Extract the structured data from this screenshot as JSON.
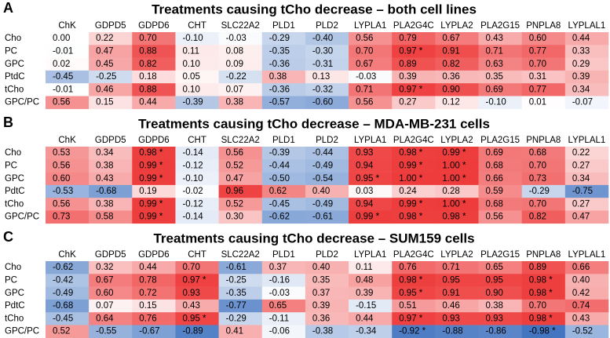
{
  "chart_data": [
    {
      "type": "heatmap",
      "panel": "A",
      "title": "Treatments causing tCho decrease – both cell lines",
      "columns": [
        "ChK",
        "GDPD5",
        "GDPD6",
        "CHT",
        "SLC22A2",
        "PLD1",
        "PLD2",
        "LYPLA1",
        "PLA2G4C",
        "LYPLA2",
        "PLA2G15",
        "PNPLA8",
        "LYPLAL1"
      ],
      "rows": [
        "Cho",
        "PC",
        "GPC",
        "PtdC",
        "tCho",
        "GPC/PC"
      ],
      "values": [
        [
          0,
          0.22,
          0.7,
          -0.1,
          -0.03,
          -0.29,
          -0.4,
          0.56,
          0.79,
          0.67,
          0.43,
          0.6,
          0.44
        ],
        [
          -0.01,
          0.47,
          0.88,
          0.11,
          0.08,
          -0.35,
          -0.3,
          0.7,
          0.97,
          0.91,
          0.71,
          0.77,
          0.33
        ],
        [
          0.02,
          0.45,
          0.82,
          0.1,
          0.09,
          -0.36,
          -0.31,
          0.67,
          0.89,
          0.82,
          0.63,
          0.7,
          0.29
        ],
        [
          -0.45,
          -0.25,
          0.18,
          0.05,
          -0.22,
          0.38,
          0.13,
          -0.03,
          0.39,
          0.36,
          0.35,
          0.31,
          0.39
        ],
        [
          -0.01,
          0.46,
          0.88,
          0.1,
          0.07,
          -0.36,
          -0.32,
          0.71,
          0.97,
          0.9,
          0.69,
          0.77,
          0.34
        ],
        [
          0.56,
          0.15,
          0.44,
          -0.39,
          0.38,
          -0.57,
          -0.6,
          0.56,
          0.27,
          0.12,
          -0.1,
          0.01,
          -0.07
        ]
      ],
      "value_labels": [
        [
          "0.00",
          "0.22",
          "0.70",
          "-0.10",
          "-0.03",
          "-0.29",
          "-0.40",
          "0.56",
          "0.79",
          "0.67",
          "0.43",
          "0.60",
          "0.44"
        ],
        [
          "-0.01",
          "0.47",
          "0.88",
          "0.11",
          "0.08",
          "-0.35",
          "-0.30",
          "0.70",
          "0.97 *",
          "0.91",
          "0.71",
          "0.77",
          "0.33"
        ],
        [
          "0.02",
          "0.45",
          "0.82",
          "0.10",
          "0.09",
          "-0.36",
          "-0.31",
          "0.67",
          "0.89",
          "0.82",
          "0.63",
          "0.70",
          "0.29"
        ],
        [
          "-0.45",
          "-0.25",
          "0.18",
          "0.05",
          "-0.22",
          "0.38",
          "0.13",
          "-0.03",
          "0.39",
          "0.36",
          "0.35",
          "0.31",
          "0.39"
        ],
        [
          "-0.01",
          "0.46",
          "0.88",
          "0.10",
          "0.07",
          "-0.36",
          "-0.32",
          "0.71",
          "0.97 *",
          "0.90",
          "0.69",
          "0.77",
          "0.34"
        ],
        [
          "0.56",
          "0.15",
          "0.44",
          "-0.39",
          "0.38",
          "-0.57",
          "-0.60",
          "0.56",
          "0.27",
          "0.12",
          "-0.10",
          "0.01",
          "-0.07"
        ]
      ],
      "zlim": [
        -1,
        1
      ],
      "colormap": {
        "low": "#3f72c0",
        "mid": "#ffffff",
        "high": "#ee3b3b"
      }
    },
    {
      "type": "heatmap",
      "panel": "B",
      "title": "Treatments causing tCho decrease – MDA-MB-231 cells",
      "columns": [
        "ChK",
        "GDPD5",
        "GDPD6",
        "CHT",
        "SLC22A2",
        "PLD1",
        "PLD2",
        "LYPLA1",
        "PLA2G4C",
        "LYPLA2",
        "PLA2G15",
        "PNPLA8",
        "LYPLAL1"
      ],
      "rows": [
        "Cho",
        "PC",
        "GPC",
        "PdtC",
        "tCho",
        "GPC/PC"
      ],
      "values": [
        [
          0.53,
          0.34,
          0.98,
          -0.14,
          0.56,
          -0.39,
          -0.44,
          0.93,
          0.98,
          0.99,
          0.69,
          0.68,
          0.22
        ],
        [
          0.56,
          0.38,
          0.99,
          -0.12,
          0.52,
          -0.44,
          -0.49,
          0.94,
          0.99,
          1,
          0.68,
          0.7,
          0.27
        ],
        [
          0.6,
          0.43,
          0.99,
          -0.1,
          0.47,
          -0.5,
          -0.54,
          0.95,
          1,
          1,
          0.66,
          0.73,
          0.34
        ],
        [
          -0.53,
          -0.68,
          0.19,
          -0.02,
          0.96,
          0.62,
          0.4,
          0.03,
          0.24,
          0.28,
          0.59,
          -0.29,
          -0.75
        ],
        [
          0.56,
          0.38,
          0.99,
          -0.12,
          0.52,
          -0.45,
          -0.49,
          0.94,
          0.99,
          1,
          0.68,
          0.7,
          0.27
        ],
        [
          0.73,
          0.58,
          0.99,
          -0.14,
          0.3,
          -0.62,
          -0.61,
          0.99,
          0.98,
          0.98,
          0.56,
          0.82,
          0.47
        ]
      ],
      "value_labels": [
        [
          "0.53",
          "0.34",
          "0.98 *",
          "-0.14",
          "0.56",
          "-0.39",
          "-0.44",
          "0.93",
          "0.98 *",
          "0.99 *",
          "0.69",
          "0.68",
          "0.22"
        ],
        [
          "0.56",
          "0.38",
          "0.99 *",
          "-0.12",
          "0.52",
          "-0.44",
          "-0.49",
          "0.94",
          "0.99 *",
          "1.00 *",
          "0.68",
          "0.70",
          "0.27"
        ],
        [
          "0.60",
          "0.43",
          "0.99 *",
          "-0.10",
          "0.47",
          "-0.50",
          "-0.54",
          "0.95 *",
          "1.00 *",
          "1.00 *",
          "0.66",
          "0.73",
          "0.34"
        ],
        [
          "-0.53",
          "-0.68",
          "0.19",
          "-0.02",
          "0.96",
          "0.62",
          "0.40",
          "0.03",
          "0.24",
          "0.28",
          "0.59",
          "-0.29",
          "-0.75"
        ],
        [
          "0.56",
          "0.38",
          "0.99 *",
          "-0.12",
          "0.52",
          "-0.45",
          "-0.49",
          "0.94",
          "0.99 *",
          "1.00 *",
          "0.68",
          "0.70",
          "0.27"
        ],
        [
          "0.73",
          "0.58",
          "0.99 *",
          "-0.14",
          "0.30",
          "-0.62",
          "-0.61",
          "0.99 *",
          "0.98 *",
          "0.98 *",
          "0.56",
          "0.82",
          "0.47"
        ]
      ],
      "zlim": [
        -1,
        1
      ],
      "colormap": {
        "low": "#3f72c0",
        "mid": "#ffffff",
        "high": "#ee3b3b"
      }
    },
    {
      "type": "heatmap",
      "panel": "C",
      "title": "Treatments causing tCho decrease – SUM159 cells",
      "columns": [
        "ChK",
        "GDPD5",
        "GDPD6",
        "CHT",
        "SLC22A2",
        "PLD1",
        "PLD2",
        "LYPLA1",
        "PLA2G4C",
        "LYPLA2",
        "PLA2G15",
        "PNPLA8",
        "LYPLAL1"
      ],
      "rows": [
        "Cho",
        "PC",
        "GPC",
        "PdtC",
        "tCho",
        "GPC/PC"
      ],
      "values": [
        [
          -0.62,
          0.32,
          0.44,
          0.7,
          -0.61,
          0.37,
          0.4,
          0.11,
          0.76,
          0.71,
          0.65,
          0.89,
          0.66
        ],
        [
          -0.42,
          0.67,
          0.78,
          0.97,
          -0.25,
          -0.16,
          0.35,
          0.48,
          0.98,
          0.95,
          0.95,
          0.98,
          0.4
        ],
        [
          -0.49,
          0.6,
          0.72,
          0.93,
          -0.35,
          -0.03,
          0.37,
          0.39,
          0.95,
          0.91,
          0.9,
          0.98,
          0.42
        ],
        [
          -0.68,
          0.07,
          0.15,
          0.43,
          -0.77,
          0.65,
          0.39,
          -0.15,
          0.51,
          0.46,
          0.38,
          0.7,
          0.74
        ],
        [
          -0.45,
          0.64,
          0.76,
          0.95,
          -0.29,
          -0.11,
          0.36,
          0.44,
          0.97,
          0.93,
          0.93,
          0.98,
          0.43
        ],
        [
          0.52,
          -0.55,
          -0.67,
          -0.89,
          0.41,
          -0.06,
          -0.38,
          -0.34,
          -0.92,
          -0.88,
          -0.86,
          -0.98,
          -0.52
        ]
      ],
      "value_labels": [
        [
          "-0.62",
          "0.32",
          "0.44",
          "0.70",
          "-0.61",
          "0.37",
          "0.40",
          "0.11",
          "0.76",
          "0.71",
          "0.65",
          "0.89",
          "0.66"
        ],
        [
          "-0.42",
          "0.67",
          "0.78",
          "0.97 *",
          "-0.25",
          "-0.16",
          "0.35",
          "0.48",
          "0.98 *",
          "0.95",
          "0.95",
          "0.98 *",
          "0.40"
        ],
        [
          "-0.49",
          "0.60",
          "0.72",
          "0.93",
          "-0.35",
          "-0.03",
          "0.37",
          "0.39",
          "0.95 *",
          "0.91",
          "0.90",
          "0.98 *",
          "0.42"
        ],
        [
          "-0.68",
          "0.07",
          "0.15",
          "0.43",
          "-0.77",
          "0.65",
          "0.39",
          "-0.15",
          "0.51",
          "0.46",
          "0.38",
          "0.70",
          "0.74"
        ],
        [
          "-0.45",
          "0.64",
          "0.76",
          "0.95 *",
          "-0.29",
          "-0.11",
          "0.36",
          "0.44",
          "0.97 *",
          "0.93",
          "0.93",
          "0.98 *",
          "0.43"
        ],
        [
          "0.52",
          "-0.55",
          "-0.67",
          "-0.89",
          "0.41",
          "-0.06",
          "-0.38",
          "-0.34",
          "-0.92 *",
          "-0.88",
          "-0.86",
          "-0.98 *",
          "-0.52"
        ]
      ],
      "zlim": [
        -1,
        1
      ],
      "colormap": {
        "low": "#3f72c0",
        "mid": "#ffffff",
        "high": "#ee3b3b"
      }
    }
  ]
}
